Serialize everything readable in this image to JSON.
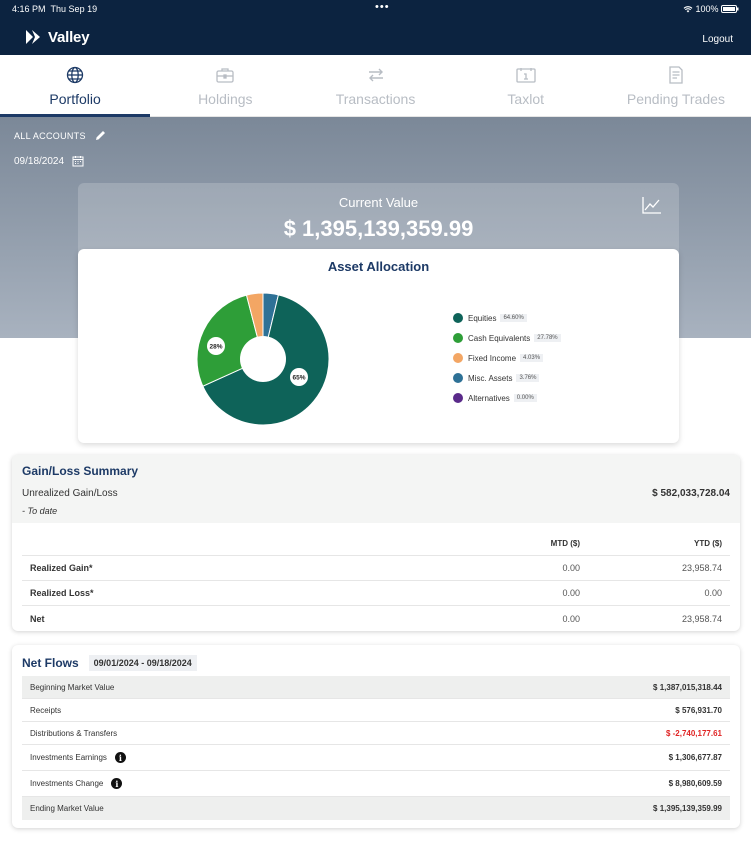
{
  "status": {
    "time": "4:16 PM",
    "date": "Thu Sep 19",
    "dots": "•••",
    "battery": "100%"
  },
  "header": {
    "brand": "Valley",
    "logout": "Logout"
  },
  "tabs": [
    {
      "label": "Portfolio",
      "icon": "globe-icon",
      "active": true
    },
    {
      "label": "Holdings",
      "icon": "briefcase-icon"
    },
    {
      "label": "Transactions",
      "icon": "transfer-arrows-icon"
    },
    {
      "label": "Taxlot",
      "icon": "calendar-icon"
    },
    {
      "label": "Pending Trades",
      "icon": "document-icon"
    }
  ],
  "account": {
    "label": "ALL ACCOUNTS",
    "date": "09/18/2024"
  },
  "current_value": {
    "label": "Current Value",
    "amount": "$ 1,395,139,359.99"
  },
  "allocation": {
    "title": "Asset Allocation",
    "slice_labels": {
      "equities": "65%",
      "cash": "28%"
    },
    "items": [
      {
        "name": "Equities",
        "pct": "64.60%",
        "value": 64.6,
        "color": "#0e6359"
      },
      {
        "name": "Cash Equivalents",
        "pct": "27.78%",
        "value": 27.78,
        "color": "#2e9e38"
      },
      {
        "name": "Fixed Income",
        "pct": "4.03%",
        "value": 4.03,
        "color": "#f3a664"
      },
      {
        "name": "Misc. Assets",
        "pct": "3.76%",
        "value": 3.76,
        "color": "#2e7196"
      },
      {
        "name": "Alternatives",
        "pct": "0.00%",
        "value": 0,
        "color": "#5a2a8a"
      }
    ]
  },
  "gain_loss": {
    "title": "Gain/Loss Summary",
    "unrealized_label": "Unrealized Gain/Loss",
    "unrealized_value": "$ 582,033,728.04",
    "to_date": "- To date",
    "col_mtd": "MTD ($)",
    "col_ytd": "YTD ($)",
    "rows": [
      {
        "label": "Realized Gain*",
        "mtd": "0.00",
        "ytd": "23,958.74"
      },
      {
        "label": "Realized Loss*",
        "mtd": "0.00",
        "ytd": "0.00"
      },
      {
        "label": "Net",
        "mtd": "0.00",
        "ytd": "23,958.74"
      }
    ]
  },
  "net_flows": {
    "title": "Net Flows",
    "range": "09/01/2024 - 09/18/2024",
    "rows": [
      {
        "label": "Beginning Market Value",
        "value": "$ 1,387,015,318.44"
      },
      {
        "label": "Receipts",
        "value": "$ 576,931.70"
      },
      {
        "label": "Distributions & Transfers",
        "value": "$ -2,740,177.61"
      },
      {
        "label": "Investments Earnings",
        "value": "$ 1,306,677.87"
      },
      {
        "label": "Investments Change",
        "value": "$ 8,980,609.59"
      },
      {
        "label": "Ending Market Value",
        "value": "$ 1,395,139,359.99"
      }
    ]
  }
}
